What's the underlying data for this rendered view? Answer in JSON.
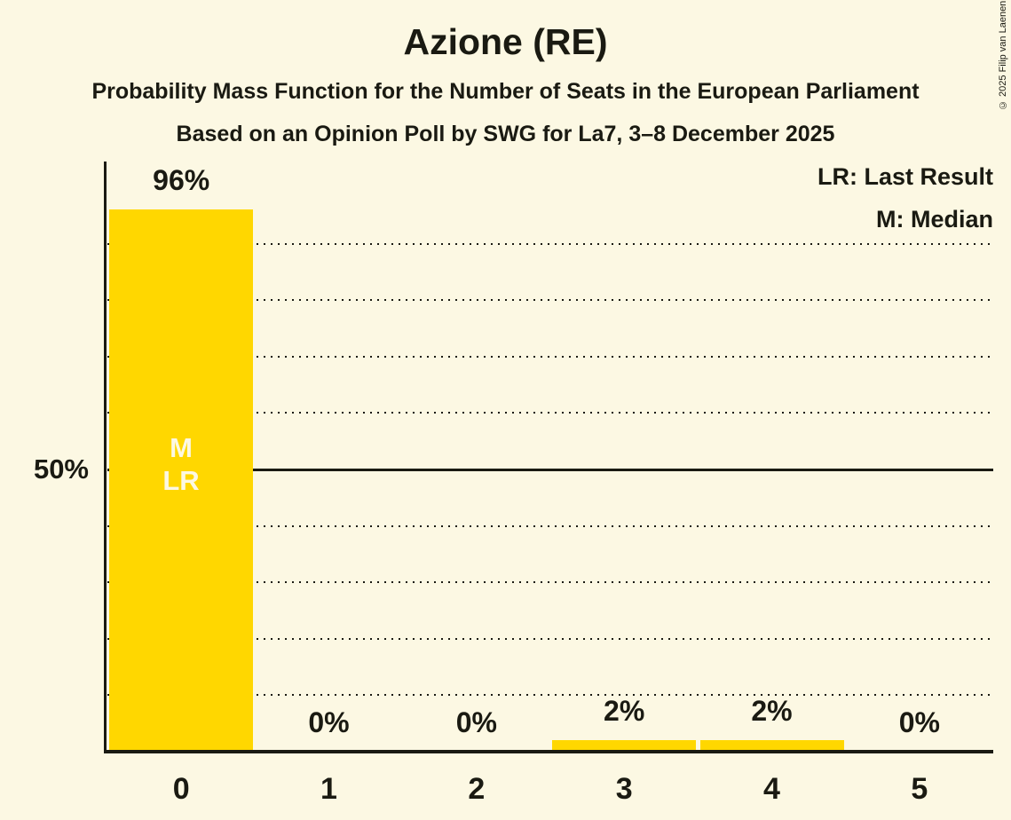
{
  "title": "Azione (RE)",
  "subtitles": [
    "Probability Mass Function for the Number of Seats in the European Parliament",
    "Based on an Opinion Poll by SWG for La7, 3–8 December 2025"
  ],
  "copyright": "© 2025 Filip van Laenen",
  "legend": {
    "last_result": "LR: Last Result",
    "median": "M: Median"
  },
  "y_axis": {
    "label_50": "50%"
  },
  "bar_annotations": {
    "median": "M",
    "last_result": "LR"
  },
  "colors": {
    "background": "#FCF8E3",
    "bar": "#FFD700",
    "text": "#1A1A12",
    "bar_label_text": "#FCF8E3"
  },
  "chart_data": {
    "type": "bar",
    "title": "Azione (RE)",
    "categories": [
      "0",
      "1",
      "2",
      "3",
      "4",
      "5"
    ],
    "values": [
      96,
      0,
      0,
      2,
      2,
      0
    ],
    "value_labels": [
      "96%",
      "0%",
      "0%",
      "2%",
      "2%",
      "0%"
    ],
    "xlabel": "",
    "ylabel": "",
    "ylim": [
      0,
      100
    ],
    "gridlines_pct": [
      10,
      20,
      30,
      40,
      50,
      60,
      70,
      80,
      90
    ],
    "solid_gridline_pct": 50,
    "grid_style": "dotted",
    "median_seat": 0,
    "last_result_seat": 0,
    "legend_position": "top-right",
    "bar_color": "#FFD700"
  }
}
